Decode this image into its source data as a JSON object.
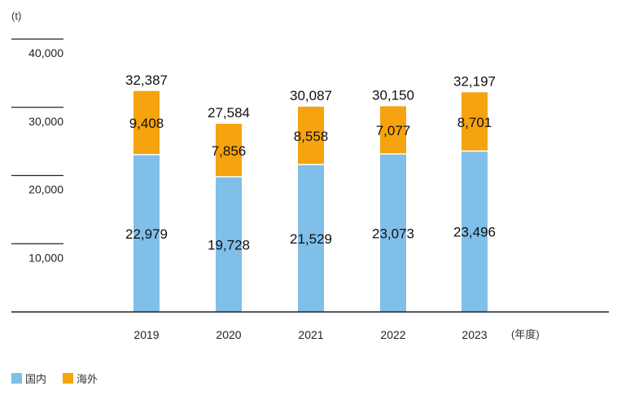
{
  "chart_data": {
    "type": "bar",
    "stacked": true,
    "unit_label": "(t)",
    "x_unit_label": "(年度)",
    "categories": [
      "2019",
      "2020",
      "2021",
      "2022",
      "2023"
    ],
    "series": [
      {
        "name": "国内",
        "color": "#7fbfe8",
        "values": [
          22979,
          19728,
          21529,
          23073,
          23496
        ],
        "labels": [
          "22,979",
          "19,728",
          "21,529",
          "23,073",
          "23,496"
        ]
      },
      {
        "name": "海外",
        "color": "#f5a30e",
        "values": [
          9408,
          7856,
          8558,
          7077,
          8701
        ],
        "labels": [
          "9,408",
          "7,856",
          "8,558",
          "7,077",
          "8,701"
        ]
      }
    ],
    "totals": [
      "32,387",
      "27,584",
      "30,087",
      "30,150",
      "32,197"
    ],
    "yticks": [
      10000,
      20000,
      30000,
      40000
    ],
    "ytick_labels": [
      "10,000",
      "20,000",
      "30,000",
      "40,000"
    ],
    "ylim": [
      0,
      40000
    ],
    "legend_position": "bottom-left"
  }
}
